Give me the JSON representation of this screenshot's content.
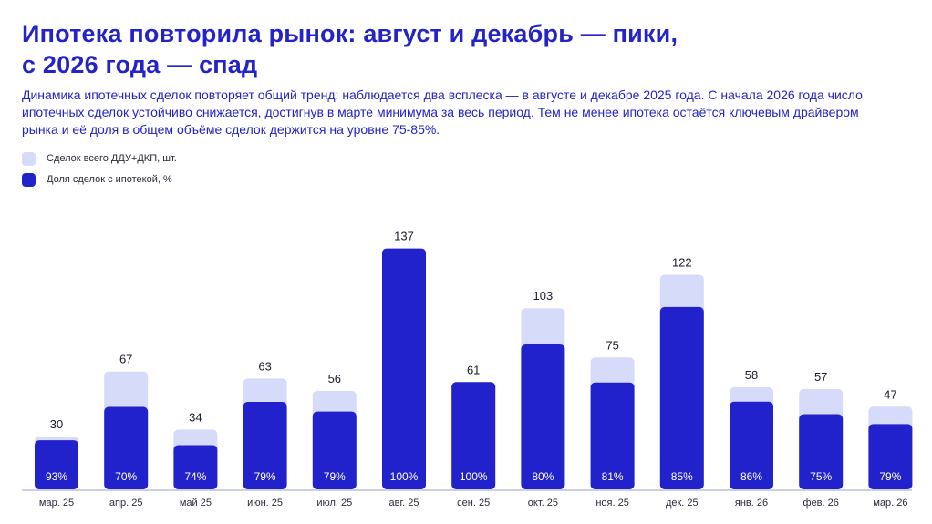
{
  "header": {
    "title_line1": "Ипотека повторила рынок: август и декабрь — пики,",
    "title_line2": "с 2026 года — спад",
    "subtitle": "Динамика ипотечных сделок повторяет общий тренд: наблюдается два всплеска — в августе и декабре 2025 года. С начала 2026 года число ипотечных сделок устойчиво снижается, достигнув в марте минимума за весь период. Тем не менее ипотека остаётся ключевым драйвером рынка и её доля в общем объёме сделок держится на уровне 75-85%."
  },
  "colors": {
    "total": "#d6dbfa",
    "mortgage": "#2222cc",
    "text": "#2323c8"
  },
  "chart_data": {
    "type": "bar",
    "categories": [
      "мар. 25",
      "апр. 25",
      "май 25",
      "июн. 25",
      "июл. 25",
      "авг. 25",
      "сен. 25",
      "окт. 25",
      "ноя. 25",
      "дек. 25",
      "янв. 26",
      "фев. 26",
      "мар. 26"
    ],
    "series": [
      {
        "name": "Сделок всего ДДУ+ДКП, шт.",
        "values": [
          30,
          67,
          34,
          63,
          56,
          137,
          61,
          103,
          75,
          122,
          58,
          57,
          47
        ]
      },
      {
        "name": "Доля сделок с ипотекой, %",
        "values": [
          93,
          70,
          74,
          79,
          79,
          100,
          100,
          80,
          81,
          85,
          86,
          75,
          79
        ]
      }
    ],
    "value_labels": [
      "30",
      "67",
      "34",
      "63",
      "56",
      "137",
      "61",
      "103",
      "75",
      "122",
      "58",
      "57",
      "47"
    ],
    "percent_labels": [
      "93%",
      "70%",
      "74%",
      "79%",
      "79%",
      "100%",
      "100%",
      "80%",
      "81%",
      "85%",
      "86%",
      "75%",
      "79%"
    ],
    "legend_position": "top-left",
    "grid": false
  }
}
